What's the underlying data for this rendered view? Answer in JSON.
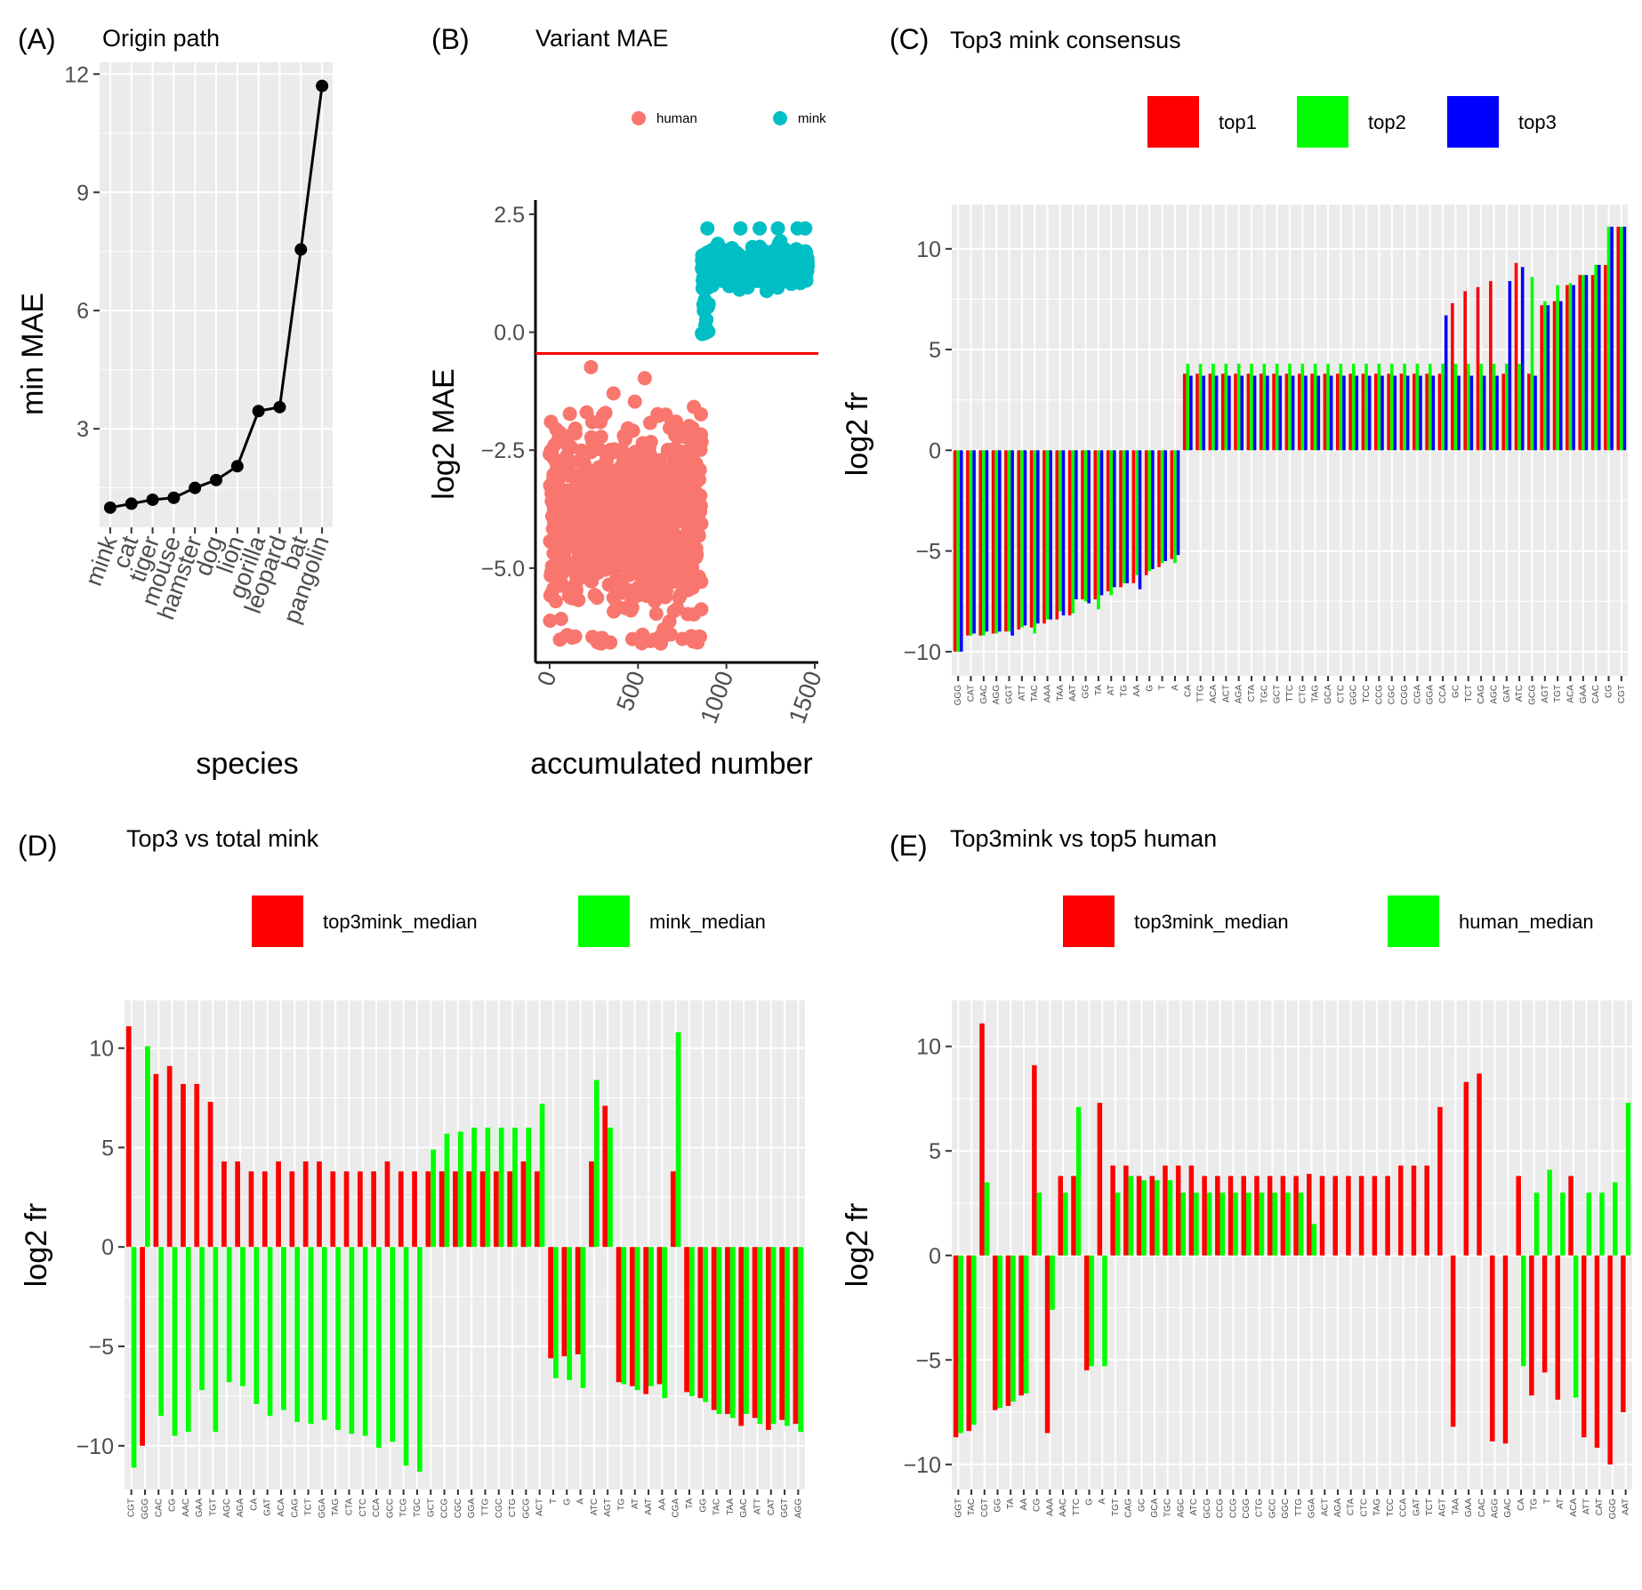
{
  "colors": {
    "panel_bg": "#ebebeb",
    "grid": "#ffffff",
    "red": "#ff0000",
    "green": "#00ff00",
    "blue": "#0000ff",
    "human": "#f8766d",
    "mink": "#00bfc4",
    "line": "#000000"
  },
  "chart_data": [
    {
      "id": "A",
      "panel_label": "(A)",
      "type": "line",
      "title": "Origin path",
      "xlabel": "species",
      "ylabel": "min MAE",
      "categories": [
        "mink",
        "cat",
        "tiger",
        "mouse",
        "hamster",
        "dog",
        "lion",
        "gorilla",
        "leopard",
        "bat",
        "pangolin"
      ],
      "values": [
        1.0,
        1.1,
        1.2,
        1.25,
        1.5,
        1.7,
        2.05,
        3.45,
        3.55,
        7.55,
        11.7
      ],
      "ylim": [
        0.5,
        12.3
      ],
      "yticks": [
        3,
        6,
        9,
        12
      ],
      "ytick_labels": [
        "3",
        "6",
        "9",
        "12"
      ]
    },
    {
      "id": "B",
      "panel_label": "(B)",
      "type": "scatter",
      "title": "Variant MAE",
      "xlabel": "accumulated number",
      "ylabel": "log2 MAE",
      "xlim": [
        -80,
        1520
      ],
      "ylim": [
        -7.0,
        2.8
      ],
      "xticks": [
        0,
        500,
        1000,
        1500
      ],
      "xtick_labels": [
        "0",
        "500",
        "1000",
        "1500"
      ],
      "yticks": [
        -5.0,
        -2.5,
        0.0,
        2.5
      ],
      "ytick_labels": [
        "−5.0",
        "−2.5",
        "0.0",
        "2.5"
      ],
      "hline": -0.45,
      "legend": [
        "human",
        "mink"
      ],
      "series": [
        {
          "name": "human",
          "n": 860,
          "x_range": [
            0,
            860
          ],
          "y_range": [
            -6.6,
            -0.4
          ],
          "typical_range": [
            -5.5,
            -2.5
          ]
        },
        {
          "name": "mink",
          "n": 600,
          "x_range": [
            860,
            1460
          ],
          "y_range": [
            -0.1,
            2.3
          ],
          "typical_range": [
            1.1,
            1.8
          ]
        }
      ]
    },
    {
      "id": "C",
      "panel_label": "(C)",
      "type": "bar",
      "title": "Top3 mink consensus",
      "xlabel": "",
      "ylabel": "log2 fr",
      "ylim": [
        -11.2,
        12.2
      ],
      "yticks": [
        -10,
        -5,
        0,
        5,
        10
      ],
      "ytick_labels": [
        "−10",
        "−5",
        "0",
        "5",
        "10"
      ],
      "categories": [
        "GGG",
        "CAT",
        "GAC",
        "AGG",
        "GGT",
        "ATT",
        "TAC",
        "AAA",
        "TAA",
        "AAT",
        "GG",
        "TA",
        "AT",
        "TG",
        "AA",
        "G",
        "T",
        "A",
        "CA",
        "TTG",
        "ACA",
        "ACT",
        "AGA",
        "CTA",
        "TGC",
        "GCT",
        "TTC",
        "CTG",
        "TAG",
        "GCA",
        "CTC",
        "GGC",
        "TCC",
        "CCG",
        "CGC",
        "CGG",
        "CGA",
        "GGA",
        "CCA",
        "GC",
        "TCT",
        "CAG",
        "AGC",
        "GAT",
        "ATC",
        "GCG",
        "AGT",
        "TGT",
        "ACA",
        "GAA",
        "CAC",
        "CG",
        "CGT"
      ],
      "series": [
        {
          "name": "top1",
          "values": [
            -10.0,
            -9.2,
            -9.2,
            -9.1,
            -9.0,
            -8.9,
            -8.8,
            -8.6,
            -8.4,
            -8.2,
            -7.4,
            -7.4,
            -7.0,
            -6.8,
            -6.6,
            -6.2,
            -5.8,
            -5.4,
            3.8,
            3.8,
            3.8,
            3.8,
            3.8,
            3.8,
            3.8,
            3.8,
            3.8,
            3.8,
            3.8,
            3.8,
            3.8,
            3.8,
            3.8,
            3.8,
            3.8,
            3.8,
            3.8,
            3.8,
            3.8,
            7.3,
            7.9,
            8.1,
            8.4,
            3.8,
            9.3,
            3.8,
            7.2,
            7.4,
            8.2,
            8.7,
            8.7,
            9.2,
            11.1
          ]
        },
        {
          "name": "top2",
          "values": [
            -10.0,
            -9.2,
            -9.2,
            -9.1,
            -9.0,
            -8.8,
            -9.1,
            -8.4,
            -8.0,
            -8.1,
            -7.5,
            -7.9,
            -7.2,
            -6.6,
            -6.2,
            -6.0,
            -5.6,
            -5.6,
            4.3,
            4.3,
            4.3,
            4.3,
            4.3,
            4.3,
            4.3,
            4.3,
            4.3,
            4.3,
            4.3,
            4.3,
            4.3,
            4.3,
            4.3,
            4.3,
            4.3,
            4.3,
            4.3,
            4.3,
            4.3,
            4.3,
            4.3,
            4.3,
            4.3,
            4.3,
            4.3,
            8.6,
            7.4,
            8.2,
            8.3,
            8.7,
            9.2,
            11.1,
            11.1
          ]
        },
        {
          "name": "top3",
          "values": [
            -10.0,
            -9.1,
            -9.0,
            -9.0,
            -9.2,
            -8.7,
            -8.6,
            -8.4,
            -8.2,
            -7.4,
            -7.6,
            -7.2,
            -6.8,
            -6.6,
            -6.9,
            -5.9,
            -5.5,
            -5.2,
            3.7,
            3.7,
            3.7,
            3.7,
            3.7,
            3.7,
            3.7,
            3.7,
            3.7,
            3.7,
            3.7,
            3.7,
            3.7,
            3.7,
            3.7,
            3.7,
            3.7,
            3.7,
            3.7,
            3.7,
            6.7,
            3.7,
            3.7,
            3.7,
            3.7,
            8.4,
            9.1,
            3.7,
            7.2,
            7.4,
            8.2,
            8.7,
            9.2,
            11.1,
            11.1
          ]
        }
      ],
      "legend": [
        "top1",
        "top2",
        "top3"
      ]
    },
    {
      "id": "D",
      "panel_label": "(D)",
      "type": "bar",
      "title": "Top3 vs total mink",
      "xlabel": "",
      "ylabel": "log2 fr",
      "ylim": [
        -12.2,
        12.4
      ],
      "yticks": [
        -10,
        -5,
        0,
        5,
        10
      ],
      "ytick_labels": [
        "−10",
        "−5",
        "0",
        "5",
        "10"
      ],
      "categories": [
        "CGT",
        "GGG",
        "CAC",
        "CG",
        "AAC",
        "GAA",
        "TGT",
        "AGC",
        "AGA",
        "CA",
        "GAT",
        "ACA",
        "CAG",
        "TCT",
        "GGA",
        "TAG",
        "CTA",
        "CTC",
        "CCA",
        "GCC",
        "TCG",
        "TGC",
        "GCT",
        "CCG",
        "CGC",
        "GGA",
        "TTG",
        "CGC",
        "CTG",
        "GCG",
        "ACT",
        "T",
        "G",
        "A",
        "ATC",
        "AGT",
        "TG",
        "AT",
        "AAT",
        "AA",
        "CGA",
        "TA",
        "GG",
        "TAC",
        "TAA",
        "GAC",
        "ATT",
        "CAT",
        "GGT",
        "AGG"
      ],
      "series": [
        {
          "name": "top3mink_median",
          "values": [
            11.1,
            -10.0,
            8.7,
            9.1,
            8.2,
            8.2,
            7.3,
            4.3,
            4.3,
            3.8,
            3.8,
            4.3,
            3.8,
            4.3,
            4.3,
            3.8,
            3.8,
            3.8,
            3.8,
            4.3,
            3.8,
            3.8,
            3.8,
            3.8,
            3.8,
            3.8,
            3.8,
            3.8,
            3.8,
            4.3,
            3.8,
            -5.6,
            -5.5,
            -5.4,
            4.3,
            7.1,
            -6.8,
            -7.0,
            -7.4,
            -6.9,
            3.8,
            -7.3,
            -7.6,
            -8.2,
            -8.4,
            -9.0,
            -8.6,
            -9.2,
            -8.7,
            -8.9
          ]
        },
        {
          "name": "mink_median",
          "values": [
            -11.1,
            10.1,
            -8.5,
            -9.5,
            -9.3,
            -7.2,
            -9.3,
            -6.8,
            -7.0,
            -7.9,
            -8.5,
            -8.2,
            -8.8,
            -8.9,
            -8.7,
            -9.2,
            -9.4,
            -9.5,
            -10.1,
            -9.8,
            -11.0,
            -11.3,
            4.9,
            5.7,
            5.8,
            6.0,
            6.0,
            6.0,
            6.0,
            6.0,
            7.2,
            -6.6,
            -6.7,
            -7.1,
            8.4,
            6.0,
            -6.9,
            -7.2,
            -7.0,
            -7.6,
            10.8,
            -7.5,
            -7.8,
            -8.4,
            -8.6,
            -8.4,
            -8.9,
            -8.9,
            -9.0,
            -9.3
          ]
        }
      ],
      "legend": [
        "top3mink_median",
        "mink_median"
      ]
    },
    {
      "id": "E",
      "panel_label": "(E)",
      "type": "bar",
      "title": "Top3mink vs top5 human",
      "xlabel": "",
      "ylabel": "log2 fr",
      "ylim": [
        -11.2,
        12.2
      ],
      "yticks": [
        -10,
        -5,
        0,
        5,
        10
      ],
      "ytick_labels": [
        "−10",
        "−5",
        "0",
        "5",
        "10"
      ],
      "categories": [
        "GGT",
        "TAC",
        "CGT",
        "GG",
        "TA",
        "AA",
        "CG",
        "AAA",
        "AAC",
        "TTC",
        "G",
        "A",
        "TGT",
        "CAG",
        "GC",
        "GCA",
        "TGC",
        "AGC",
        "ATC",
        "GCG",
        "CCG",
        "CCG",
        "CGG",
        "CTG",
        "GCC",
        "GGC",
        "TTG",
        "GGA",
        "ACT",
        "AGA",
        "CTA",
        "CTC",
        "TAG",
        "TCC",
        "CCA",
        "GAT",
        "TCT",
        "AGT",
        "TAA",
        "GAA",
        "CAC",
        "AGG",
        "GAC",
        "CA",
        "TG",
        "T",
        "AT",
        "ACA",
        "ATT",
        "CAT",
        "GGG",
        "AAT"
      ],
      "series": [
        {
          "name": "top3mink_median",
          "values": [
            -8.7,
            -8.4,
            11.1,
            -7.4,
            -7.2,
            -6.7,
            9.1,
            -8.5,
            3.8,
            3.8,
            -5.5,
            7.3,
            4.3,
            4.3,
            3.8,
            3.8,
            4.3,
            4.3,
            4.3,
            3.8,
            3.8,
            3.8,
            3.8,
            3.8,
            3.8,
            3.8,
            3.8,
            3.9,
            3.8,
            3.8,
            3.8,
            3.8,
            3.8,
            3.8,
            4.3,
            4.3,
            4.3,
            7.1,
            -8.2,
            8.3,
            8.7,
            -8.9,
            -9.0,
            3.8,
            -6.7,
            -5.6,
            -6.9,
            3.8,
            -8.7,
            -9.2,
            -10.0,
            -7.5
          ]
        },
        {
          "name": "human_median",
          "values": [
            -8.5,
            -8.1,
            3.5,
            -7.3,
            -7.0,
            -6.6,
            3.0,
            -2.6,
            3.0,
            7.1,
            -5.3,
            -5.3,
            3.0,
            3.8,
            3.6,
            3.6,
            3.6,
            3.0,
            3.0,
            3.0,
            3.0,
            3.0,
            3.0,
            3.0,
            3.0,
            3.0,
            3.0,
            1.5,
            0,
            0,
            0,
            0,
            0,
            0,
            0,
            0,
            0,
            0,
            0,
            0,
            0,
            0,
            0,
            -5.3,
            3.0,
            4.1,
            3.0,
            -6.8,
            3.0,
            3.0,
            3.5,
            7.3
          ]
        }
      ],
      "legend": [
        "top3mink_median",
        "human_median"
      ]
    }
  ]
}
